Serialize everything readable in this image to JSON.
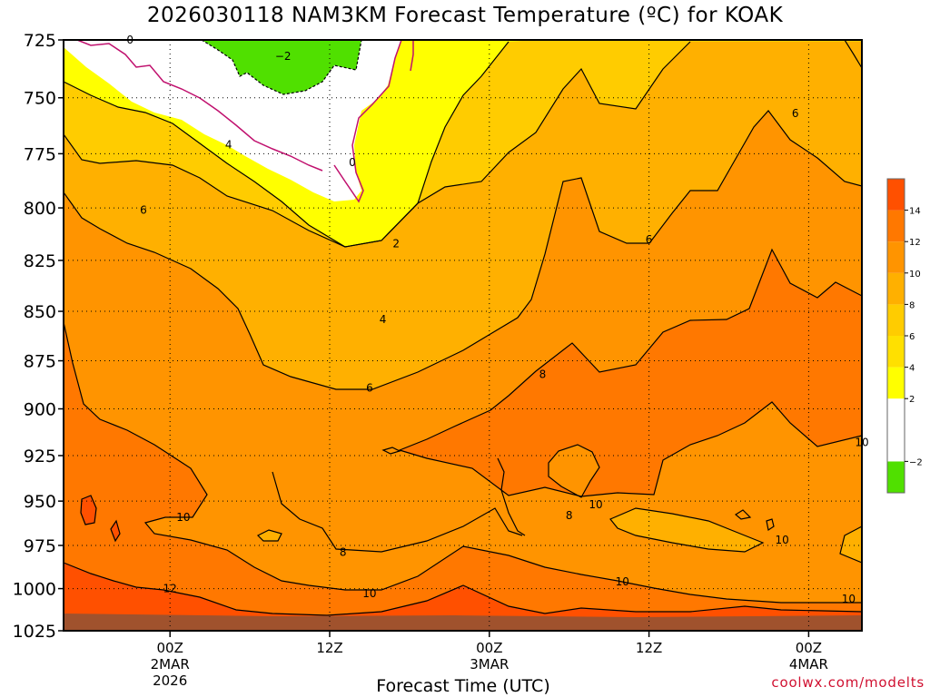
{
  "title": "2026030118 NAM3KM Forecast Temperature (ºC) for KOAK",
  "credit": "coolwx.com/modelts",
  "colors": {
    "bands": [
      "#50e000",
      "#ffffff",
      "#ffff00",
      "#ffe000",
      "#ffcc00",
      "#ffb000",
      "#ff9400",
      "#ff7800",
      "#ff5000"
    ],
    "freezing_contour": "#c0106e",
    "contour": "#000000",
    "ground": "#a0522d"
  },
  "chart_data": {
    "type": "heatmap",
    "title": "2026030118 NAM3KM Forecast Temperature (ºC) for KOAK",
    "xlabel": "Forecast Time (UTC)",
    "ylabel": "",
    "y_scale": "log-pressure",
    "y_range_hPa": [
      1025,
      725
    ],
    "y_ticks": [
      725,
      750,
      775,
      800,
      825,
      850,
      875,
      900,
      925,
      950,
      975,
      1000,
      1025
    ],
    "x_range_hours": [
      -8,
      52
    ],
    "x_ticks": [
      {
        "hour": 0,
        "lines": [
          "00Z",
          "2MAR",
          "2026"
        ]
      },
      {
        "hour": 12,
        "lines": [
          "12Z"
        ]
      },
      {
        "hour": 24,
        "lines": [
          "00Z",
          "3MAR"
        ]
      },
      {
        "hour": 36,
        "lines": [
          "12Z"
        ]
      },
      {
        "hour": 48,
        "lines": [
          "00Z",
          "4MAR"
        ]
      }
    ],
    "grid": true,
    "colorbar": {
      "position": "right",
      "levels": [
        -4,
        -2,
        0,
        2,
        4,
        6,
        8,
        10,
        12,
        14,
        16
      ],
      "tick_labels": [
        "−2",
        "2",
        "4",
        "6",
        "8",
        "10",
        "12",
        "14"
      ],
      "tick_values": [
        -2,
        2,
        4,
        6,
        8,
        10,
        12,
        14
      ]
    },
    "contour_labels": [
      {
        "text": "0",
        "hour": -3,
        "p": 725
      },
      {
        "text": "−2",
        "hour": 8.5,
        "p": 732
      },
      {
        "text": "0",
        "hour": 13.7,
        "p": 779
      },
      {
        "text": "2",
        "hour": 17,
        "p": 817
      },
      {
        "text": "4",
        "hour": 4.4,
        "p": 771
      },
      {
        "text": "4",
        "hour": 16,
        "p": 854
      },
      {
        "text": "6",
        "hour": -2,
        "p": 801
      },
      {
        "text": "6",
        "hour": 36,
        "p": 815
      },
      {
        "text": "6",
        "hour": 47,
        "p": 757
      },
      {
        "text": "6",
        "hour": 15,
        "p": 889
      },
      {
        "text": "8",
        "hour": 28,
        "p": 882
      },
      {
        "text": "8",
        "hour": 13,
        "p": 979
      },
      {
        "text": "8",
        "hour": 30,
        "p": 958
      },
      {
        "text": "10",
        "hour": 1,
        "p": 959
      },
      {
        "text": "10",
        "hour": 15,
        "p": 1003
      },
      {
        "text": "10",
        "hour": 34,
        "p": 996
      },
      {
        "text": "10",
        "hour": 32,
        "p": 952
      },
      {
        "text": "10",
        "hour": 46,
        "p": 972
      },
      {
        "text": "10",
        "hour": 52,
        "p": 918
      },
      {
        "text": "10",
        "hour": 51,
        "p": 1006
      },
      {
        "text": "12",
        "hour": 0,
        "p": 1000
      }
    ]
  }
}
